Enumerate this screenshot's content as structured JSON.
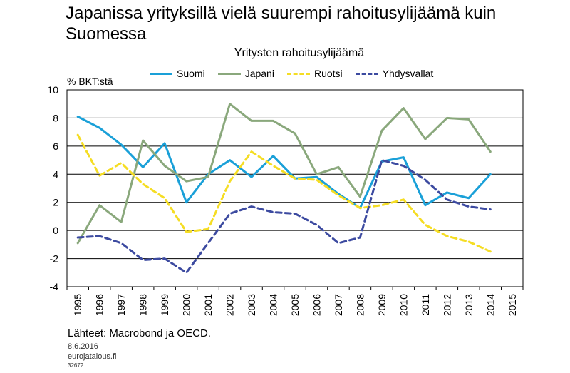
{
  "title": "Japanissa yrityksillä vielä suurempi rahoitusylijäämä kuin Suomessa",
  "source": "Lähteet: Macrobond ja OECD.",
  "date": "8.6.2016",
  "site": "eurojatalous.fi",
  "code": "32672",
  "chart_data": {
    "type": "line",
    "title": "Yritysten rahoitusylijäämä",
    "ylabel": "% BKT:stä",
    "xlabel": "",
    "ylim": [
      -4,
      10
    ],
    "yticks": [
      "10",
      "8",
      "6",
      "4",
      "2",
      "0",
      "-2",
      "-4"
    ],
    "x": [
      "1995",
      "1996",
      "1997",
      "1998",
      "1999",
      "2000",
      "2001",
      "2002",
      "2003",
      "2004",
      "2005",
      "2006",
      "2007",
      "2008",
      "2009",
      "2010",
      "2011",
      "2012",
      "2013",
      "2014",
      "2015"
    ],
    "grid": true,
    "legend_position": "top",
    "series": [
      {
        "name": "Suomi",
        "color": "#1aa0d8",
        "style": "solid",
        "values": [
          8.1,
          7.3,
          6.1,
          4.5,
          6.2,
          2.0,
          4.0,
          5.0,
          3.8,
          5.3,
          3.7,
          3.8,
          2.6,
          1.6,
          4.9,
          5.2,
          1.8,
          2.7,
          2.3,
          4.0,
          null
        ]
      },
      {
        "name": "Japani",
        "color": "#8aa87c",
        "style": "solid",
        "values": [
          -0.9,
          1.8,
          0.6,
          6.4,
          4.6,
          3.5,
          3.8,
          9.0,
          7.8,
          7.8,
          6.9,
          4.0,
          4.5,
          2.4,
          7.1,
          8.7,
          6.5,
          8.0,
          7.9,
          5.6,
          null
        ]
      },
      {
        "name": "Ruotsi",
        "color": "#f5dd24",
        "style": "dashed",
        "values": [
          6.8,
          3.9,
          4.8,
          3.3,
          2.3,
          -0.1,
          0.1,
          3.5,
          5.6,
          4.6,
          3.7,
          3.6,
          2.5,
          1.6,
          1.8,
          2.2,
          0.4,
          -0.4,
          -0.8,
          -1.5,
          null
        ]
      },
      {
        "name": "Yhdysvallat",
        "color": "#3c4aa0",
        "style": "dashed",
        "values": [
          -0.5,
          -0.4,
          -0.9,
          -2.1,
          -2.0,
          -3.0,
          -0.9,
          1.2,
          1.7,
          1.3,
          1.2,
          0.4,
          -0.9,
          -0.5,
          5.0,
          4.6,
          3.6,
          2.2,
          1.7,
          1.5,
          null
        ]
      }
    ]
  }
}
